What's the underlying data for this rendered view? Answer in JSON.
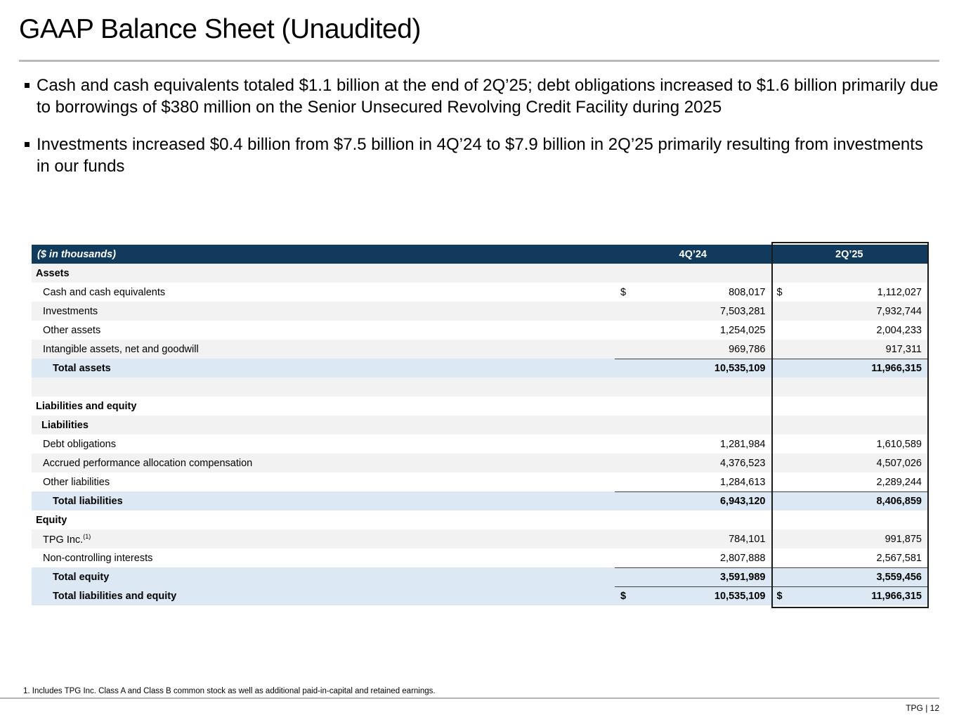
{
  "slide": {
    "title": "GAAP Balance Sheet (Unaudited)",
    "bullets": [
      "Cash and cash equivalents totaled $1.1 billion at the end of 2Q’25; debt obligations increased to $1.6 billion primarily due to borrowings of $380 million on the Senior Unsecured Revolving Credit Facility during 2025",
      "Investments increased $0.4 billion from $7.5 billion in 4Q’24 to $7.9 billion in 2Q’25 primarily resulting from investments in our funds"
    ],
    "footnote": "1. Includes TPG Inc. Class A and Class B common stock as well as additional paid-in-capital and retained earnings.",
    "page_footer": "TPG | 12"
  },
  "colors": {
    "header_navy": "#113a5c",
    "total_row_blue": "#dce9f4",
    "alt_row_gray": "#f2f2f2",
    "highlight_box_border": "#1a1a1a",
    "rule_gray": "#bababa"
  },
  "table": {
    "header": {
      "label": "($ in thousands)",
      "col1": "4Q’24",
      "col2": "2Q’25"
    },
    "rows": [
      {
        "type": "section",
        "shade": "gray",
        "label": "Assets",
        "d1": "",
        "v1": "",
        "d2": "",
        "v2": ""
      },
      {
        "type": "item",
        "shade": "white",
        "label": "Cash and cash equivalents",
        "d1": "$",
        "v1": "808,017",
        "d2": "$",
        "v2": "1,112,027"
      },
      {
        "type": "item",
        "shade": "gray",
        "label": "Investments",
        "d1": "",
        "v1": "7,503,281",
        "d2": "",
        "v2": "7,932,744"
      },
      {
        "type": "item",
        "shade": "white",
        "label": "Other assets",
        "d1": "",
        "v1": "1,254,025",
        "d2": "",
        "v2": "2,004,233"
      },
      {
        "type": "item",
        "shade": "gray",
        "label": "Intangible assets, net and goodwill",
        "d1": "",
        "v1": "969,786",
        "d2": "",
        "v2": "917,311"
      },
      {
        "type": "total",
        "shade": "blue",
        "label": "Total assets",
        "topline": true,
        "d1": "",
        "v1": "10,535,109",
        "d2": "",
        "v2": "11,966,315"
      },
      {
        "type": "spacer",
        "shade": "gray",
        "label": "",
        "d1": "",
        "v1": "",
        "d2": "",
        "v2": ""
      },
      {
        "type": "section",
        "shade": "white",
        "label": "Liabilities and equity",
        "d1": "",
        "v1": "",
        "d2": "",
        "v2": ""
      },
      {
        "type": "subsection",
        "shade": "gray",
        "label": "Liabilities",
        "d1": "",
        "v1": "",
        "d2": "",
        "v2": ""
      },
      {
        "type": "item",
        "shade": "white",
        "label": "Debt obligations",
        "d1": "",
        "v1": "1,281,984",
        "d2": "",
        "v2": "1,610,589"
      },
      {
        "type": "item",
        "shade": "gray",
        "label": "Accrued performance allocation compensation",
        "d1": "",
        "v1": "4,376,523",
        "d2": "",
        "v2": "4,507,026"
      },
      {
        "type": "item",
        "shade": "white",
        "label": "Other liabilities",
        "d1": "",
        "v1": "1,284,613",
        "d2": "",
        "v2": "2,289,244"
      },
      {
        "type": "total",
        "shade": "blue",
        "label": "Total liabilities",
        "topline": true,
        "d1": "",
        "v1": "6,943,120",
        "d2": "",
        "v2": "8,406,859"
      },
      {
        "type": "section",
        "shade": "white",
        "label": "Equity",
        "d1": "",
        "v1": "",
        "d2": "",
        "v2": ""
      },
      {
        "type": "item",
        "shade": "gray",
        "label": "TPG Inc.",
        "sup": "(1)",
        "d1": "",
        "v1": "784,101",
        "d2": "",
        "v2": "991,875"
      },
      {
        "type": "item",
        "shade": "white",
        "label": "Non-controlling interests",
        "d1": "",
        "v1": "2,807,888",
        "d2": "",
        "v2": "2,567,581"
      },
      {
        "type": "total",
        "shade": "blue",
        "label": "Total equity",
        "topline": true,
        "d1": "",
        "v1": "3,591,989",
        "d2": "",
        "v2": "3,559,456"
      },
      {
        "type": "total",
        "shade": "blue",
        "label": "Total liabilities and equity",
        "topline": true,
        "d1": "$",
        "v1": "10,535,109",
        "d2": "$",
        "v2": "11,966,315"
      }
    ]
  }
}
